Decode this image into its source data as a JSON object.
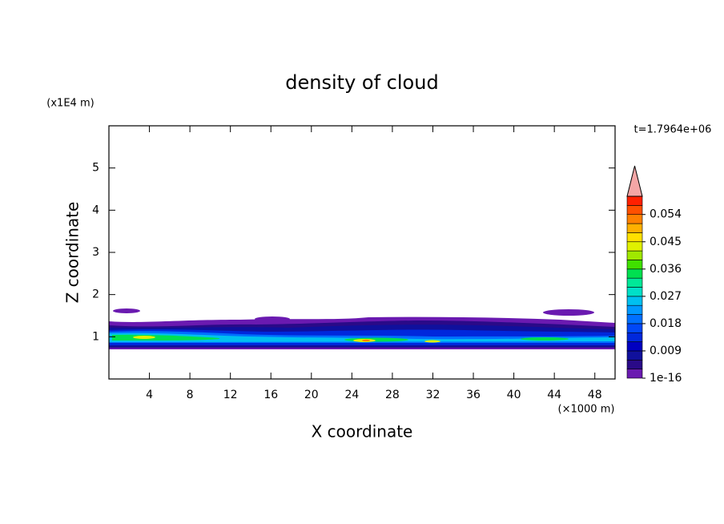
{
  "chart_data": {
    "type": "contour",
    "title": "density of cloud",
    "x_label": "X coordinate",
    "y_label": "Z coordinate",
    "x_unit_label": "(×1000 m)",
    "y_unit_label": "(x1E4 m)",
    "time_label": "t=1.7964e+06",
    "xlim": [
      0,
      50
    ],
    "xticks": [
      4,
      8,
      12,
      16,
      20,
      24,
      28,
      32,
      36,
      40,
      44,
      48
    ],
    "ylim": [
      0,
      6
    ],
    "yticks": [
      1,
      2,
      3,
      4,
      5
    ],
    "levels": [
      1e-16,
      0.003,
      0.006,
      0.009,
      0.012,
      0.015,
      0.018,
      0.021,
      0.024,
      0.027,
      0.03,
      0.033,
      0.036,
      0.039,
      0.042,
      0.045,
      0.048,
      0.051,
      0.054,
      0.057,
      0.06
    ],
    "colors": [
      "#6a1ab0",
      "#2a0a88",
      "#10109c",
      "#0000c0",
      "#0028dc",
      "#0048f8",
      "#0070ff",
      "#0098ff",
      "#00c0f0",
      "#00e0c8",
      "#00e898",
      "#00e050",
      "#40e000",
      "#a0e800",
      "#e0f000",
      "#ffe000",
      "#ffb000",
      "#ff8000",
      "#ff5000",
      "#ff2000"
    ],
    "extend_color": "#f4a6a6",
    "cbar_ticks": [
      {
        "value": 1e-16,
        "label": "1e-16"
      },
      0.009,
      0.018,
      0.027,
      0.036,
      0.045,
      0.054
    ]
  }
}
